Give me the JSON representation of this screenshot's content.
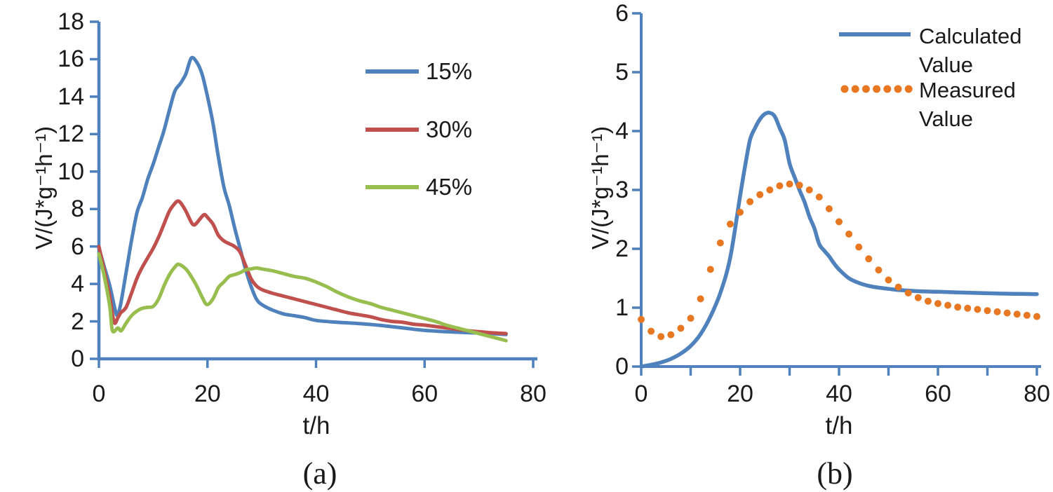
{
  "figure": {
    "background": "#ffffff",
    "text_color": "#1a1a1a",
    "axis_color": "#4f81bd"
  },
  "chart_data": [
    {
      "type": "line",
      "panel_label": "(a)",
      "xlabel": "t/h",
      "ylabel": "V/(J*g⁻¹h⁻¹)",
      "xlim": [
        0,
        80
      ],
      "ylim": [
        0,
        18
      ],
      "xticks": [
        0,
        20,
        40,
        60,
        80
      ],
      "xtick_labels": [
        "0",
        "20",
        "40",
        "60",
        "80"
      ],
      "yticks": [
        0,
        2,
        4,
        6,
        8,
        10,
        12,
        14,
        16,
        18
      ],
      "ytick_labels": [
        "0",
        "2",
        "4",
        "6",
        "8",
        "10",
        "12",
        "14",
        "16",
        "18"
      ],
      "grid": false,
      "legend_position": "upper-right-inside",
      "series": [
        {
          "name": "15%",
          "color": "#4f81bd",
          "line_style": "solid",
          "points": [
            [
              0,
              5.9
            ],
            [
              1,
              4.9
            ],
            [
              2,
              3.9
            ],
            [
              3,
              2.6
            ],
            [
              3.4,
              2.35
            ],
            [
              4,
              2.9
            ],
            [
              5,
              4.6
            ],
            [
              6,
              6.3
            ],
            [
              7,
              7.8
            ],
            [
              8,
              8.6
            ],
            [
              9,
              9.6
            ],
            [
              10,
              10.4
            ],
            [
              11,
              11.3
            ],
            [
              12,
              12.2
            ],
            [
              13,
              13.3
            ],
            [
              14,
              14.3
            ],
            [
              15,
              14.7
            ],
            [
              16,
              15.2
            ],
            [
              17,
              16.05
            ],
            [
              18,
              15.85
            ],
            [
              19,
              15.2
            ],
            [
              20,
              14.0
            ],
            [
              21,
              12.6
            ],
            [
              22,
              10.8
            ],
            [
              23,
              9.2
            ],
            [
              24,
              8.2
            ],
            [
              25,
              7.0
            ],
            [
              26,
              5.9
            ],
            [
              27,
              4.8
            ],
            [
              28,
              3.9
            ],
            [
              29,
              3.2
            ],
            [
              30,
              2.9
            ],
            [
              32,
              2.6
            ],
            [
              34,
              2.4
            ],
            [
              36,
              2.3
            ],
            [
              38,
              2.2
            ],
            [
              40,
              2.05
            ],
            [
              44,
              1.95
            ],
            [
              48,
              1.88
            ],
            [
              52,
              1.78
            ],
            [
              56,
              1.65
            ],
            [
              60,
              1.52
            ],
            [
              64,
              1.45
            ],
            [
              68,
              1.4
            ],
            [
              72,
              1.35
            ],
            [
              75,
              1.3
            ]
          ]
        },
        {
          "name": "30%",
          "color": "#c0504d",
          "line_style": "solid",
          "points": [
            [
              0,
              6.0
            ],
            [
              1,
              4.7
            ],
            [
              2,
              3.3
            ],
            [
              2.8,
              1.95
            ],
            [
              3.5,
              2.2
            ],
            [
              4,
              2.45
            ],
            [
              5,
              2.75
            ],
            [
              6,
              3.5
            ],
            [
              7,
              4.3
            ],
            [
              8,
              4.9
            ],
            [
              9,
              5.4
            ],
            [
              10,
              5.9
            ],
            [
              11,
              6.5
            ],
            [
              12,
              7.2
            ],
            [
              13,
              7.9
            ],
            [
              14,
              8.3
            ],
            [
              14.5,
              8.42
            ],
            [
              15,
              8.35
            ],
            [
              16,
              7.9
            ],
            [
              17,
              7.3
            ],
            [
              17.5,
              7.15
            ],
            [
              18,
              7.25
            ],
            [
              19,
              7.6
            ],
            [
              19.5,
              7.7
            ],
            [
              20,
              7.55
            ],
            [
              21,
              7.2
            ],
            [
              22,
              6.6
            ],
            [
              23,
              6.3
            ],
            [
              24,
              6.15
            ],
            [
              25,
              6.0
            ],
            [
              26,
              5.7
            ],
            [
              27,
              5.0
            ],
            [
              28,
              4.3
            ],
            [
              29,
              3.9
            ],
            [
              30,
              3.7
            ],
            [
              32,
              3.5
            ],
            [
              34,
              3.35
            ],
            [
              36,
              3.2
            ],
            [
              38,
              3.05
            ],
            [
              40,
              2.9
            ],
            [
              42,
              2.75
            ],
            [
              44,
              2.6
            ],
            [
              46,
              2.45
            ],
            [
              48,
              2.35
            ],
            [
              50,
              2.25
            ],
            [
              52,
              2.1
            ],
            [
              54,
              2.0
            ],
            [
              56,
              1.95
            ],
            [
              58,
              1.85
            ],
            [
              60,
              1.8
            ],
            [
              64,
              1.65
            ],
            [
              68,
              1.5
            ],
            [
              72,
              1.4
            ],
            [
              75,
              1.35
            ]
          ]
        },
        {
          "name": "45%",
          "color": "#97be4f",
          "line_style": "solid",
          "points": [
            [
              0,
              5.6
            ],
            [
              1,
              4.4
            ],
            [
              2,
              2.8
            ],
            [
              2.5,
              1.5
            ],
            [
              3.5,
              1.65
            ],
            [
              4.1,
              1.5
            ],
            [
              5,
              1.9
            ],
            [
              6,
              2.3
            ],
            [
              7,
              2.55
            ],
            [
              8,
              2.7
            ],
            [
              9,
              2.75
            ],
            [
              10,
              2.8
            ],
            [
              11,
              3.2
            ],
            [
              12,
              3.9
            ],
            [
              13,
              4.5
            ],
            [
              14,
              4.9
            ],
            [
              14.7,
              5.05
            ],
            [
              16,
              4.8
            ],
            [
              17,
              4.4
            ],
            [
              18,
              3.9
            ],
            [
              19,
              3.3
            ],
            [
              19.9,
              2.9
            ],
            [
              21,
              3.2
            ],
            [
              22,
              3.8
            ],
            [
              23,
              4.1
            ],
            [
              24,
              4.4
            ],
            [
              25,
              4.5
            ],
            [
              26,
              4.6
            ],
            [
              27,
              4.75
            ],
            [
              28,
              4.8
            ],
            [
              29,
              4.85
            ],
            [
              30,
              4.8
            ],
            [
              32,
              4.7
            ],
            [
              34,
              4.55
            ],
            [
              36,
              4.4
            ],
            [
              38,
              4.3
            ],
            [
              40,
              4.1
            ],
            [
              42,
              3.85
            ],
            [
              44,
              3.55
            ],
            [
              46,
              3.3
            ],
            [
              48,
              3.1
            ],
            [
              50,
              2.95
            ],
            [
              52,
              2.75
            ],
            [
              54,
              2.6
            ],
            [
              56,
              2.45
            ],
            [
              58,
              2.3
            ],
            [
              60,
              2.15
            ],
            [
              62,
              2.0
            ],
            [
              64,
              1.8
            ],
            [
              66,
              1.65
            ],
            [
              68,
              1.5
            ],
            [
              70,
              1.35
            ],
            [
              72,
              1.2
            ],
            [
              74,
              1.05
            ],
            [
              75,
              0.97
            ]
          ]
        }
      ]
    },
    {
      "type": "line",
      "panel_label": "(b)",
      "xlabel": "t/h",
      "ylabel": "V/(J*g⁻¹h⁻¹)",
      "xlim": [
        0,
        80
      ],
      "ylim": [
        0,
        6
      ],
      "xticks": [
        0,
        10,
        20,
        30,
        40,
        50,
        60,
        70,
        80
      ],
      "xtick_labels": [
        "0",
        "",
        "20",
        "",
        "40",
        "",
        "60",
        "",
        "80"
      ],
      "yticks": [
        0,
        1,
        2,
        3,
        4,
        5,
        6
      ],
      "ytick_labels": [
        "0",
        "1",
        "2",
        "3",
        "4",
        "5",
        "6"
      ],
      "grid": false,
      "legend_position": "upper-right-inside",
      "series": [
        {
          "name": "Calculated Value",
          "color": "#4f81bd",
          "line_style": "solid",
          "points": [
            [
              0,
              0
            ],
            [
              2,
              0.03
            ],
            [
              4,
              0.07
            ],
            [
              6,
              0.13
            ],
            [
              8,
              0.22
            ],
            [
              10,
              0.35
            ],
            [
              12,
              0.55
            ],
            [
              14,
              0.85
            ],
            [
              16,
              1.25
            ],
            [
              18,
              1.85
            ],
            [
              20,
              2.9
            ],
            [
              21,
              3.4
            ],
            [
              22,
              3.85
            ],
            [
              23,
              4.05
            ],
            [
              24,
              4.2
            ],
            [
              25,
              4.29
            ],
            [
              26,
              4.31
            ],
            [
              27,
              4.25
            ],
            [
              28,
              4.05
            ],
            [
              29,
              3.85
            ],
            [
              30,
              3.45
            ],
            [
              31,
              3.22
            ],
            [
              32,
              3.0
            ],
            [
              33,
              2.8
            ],
            [
              34,
              2.55
            ],
            [
              35,
              2.35
            ],
            [
              36,
              2.08
            ],
            [
              37,
              1.97
            ],
            [
              38,
              1.87
            ],
            [
              39,
              1.75
            ],
            [
              40,
              1.65
            ],
            [
              42,
              1.5
            ],
            [
              44,
              1.42
            ],
            [
              46,
              1.37
            ],
            [
              48,
              1.34
            ],
            [
              50,
              1.32
            ],
            [
              52,
              1.3
            ],
            [
              54,
              1.29
            ],
            [
              56,
              1.28
            ],
            [
              60,
              1.27
            ],
            [
              64,
              1.26
            ],
            [
              68,
              1.25
            ],
            [
              72,
              1.24
            ],
            [
              76,
              1.235
            ],
            [
              80,
              1.23
            ]
          ]
        },
        {
          "name": "Measured Value",
          "color": "#e87722",
          "line_style": "dotted",
          "points": [
            [
              0,
              0.8
            ],
            [
              2,
              0.6
            ],
            [
              4,
              0.51
            ],
            [
              6,
              0.54
            ],
            [
              8,
              0.65
            ],
            [
              10,
              0.82
            ],
            [
              12,
              1.15
            ],
            [
              14,
              1.65
            ],
            [
              16,
              2.1
            ],
            [
              18,
              2.42
            ],
            [
              20,
              2.62
            ],
            [
              22,
              2.8
            ],
            [
              24,
              2.92
            ],
            [
              26,
              3.0
            ],
            [
              28,
              3.07
            ],
            [
              30,
              3.1
            ],
            [
              32,
              3.08
            ],
            [
              34,
              3.0
            ],
            [
              36,
              2.88
            ],
            [
              38,
              2.68
            ],
            [
              40,
              2.46
            ],
            [
              42,
              2.25
            ],
            [
              44,
              2.03
            ],
            [
              46,
              1.83
            ],
            [
              48,
              1.64
            ],
            [
              50,
              1.47
            ],
            [
              52,
              1.35
            ],
            [
              54,
              1.25
            ],
            [
              56,
              1.17
            ],
            [
              58,
              1.11
            ],
            [
              60,
              1.07
            ],
            [
              62,
              1.04
            ],
            [
              64,
              1.01
            ],
            [
              66,
              0.99
            ],
            [
              68,
              0.97
            ],
            [
              70,
              0.95
            ],
            [
              72,
              0.93
            ],
            [
              74,
              0.91
            ],
            [
              76,
              0.89
            ],
            [
              78,
              0.87
            ],
            [
              80,
              0.85
            ]
          ]
        }
      ]
    }
  ]
}
